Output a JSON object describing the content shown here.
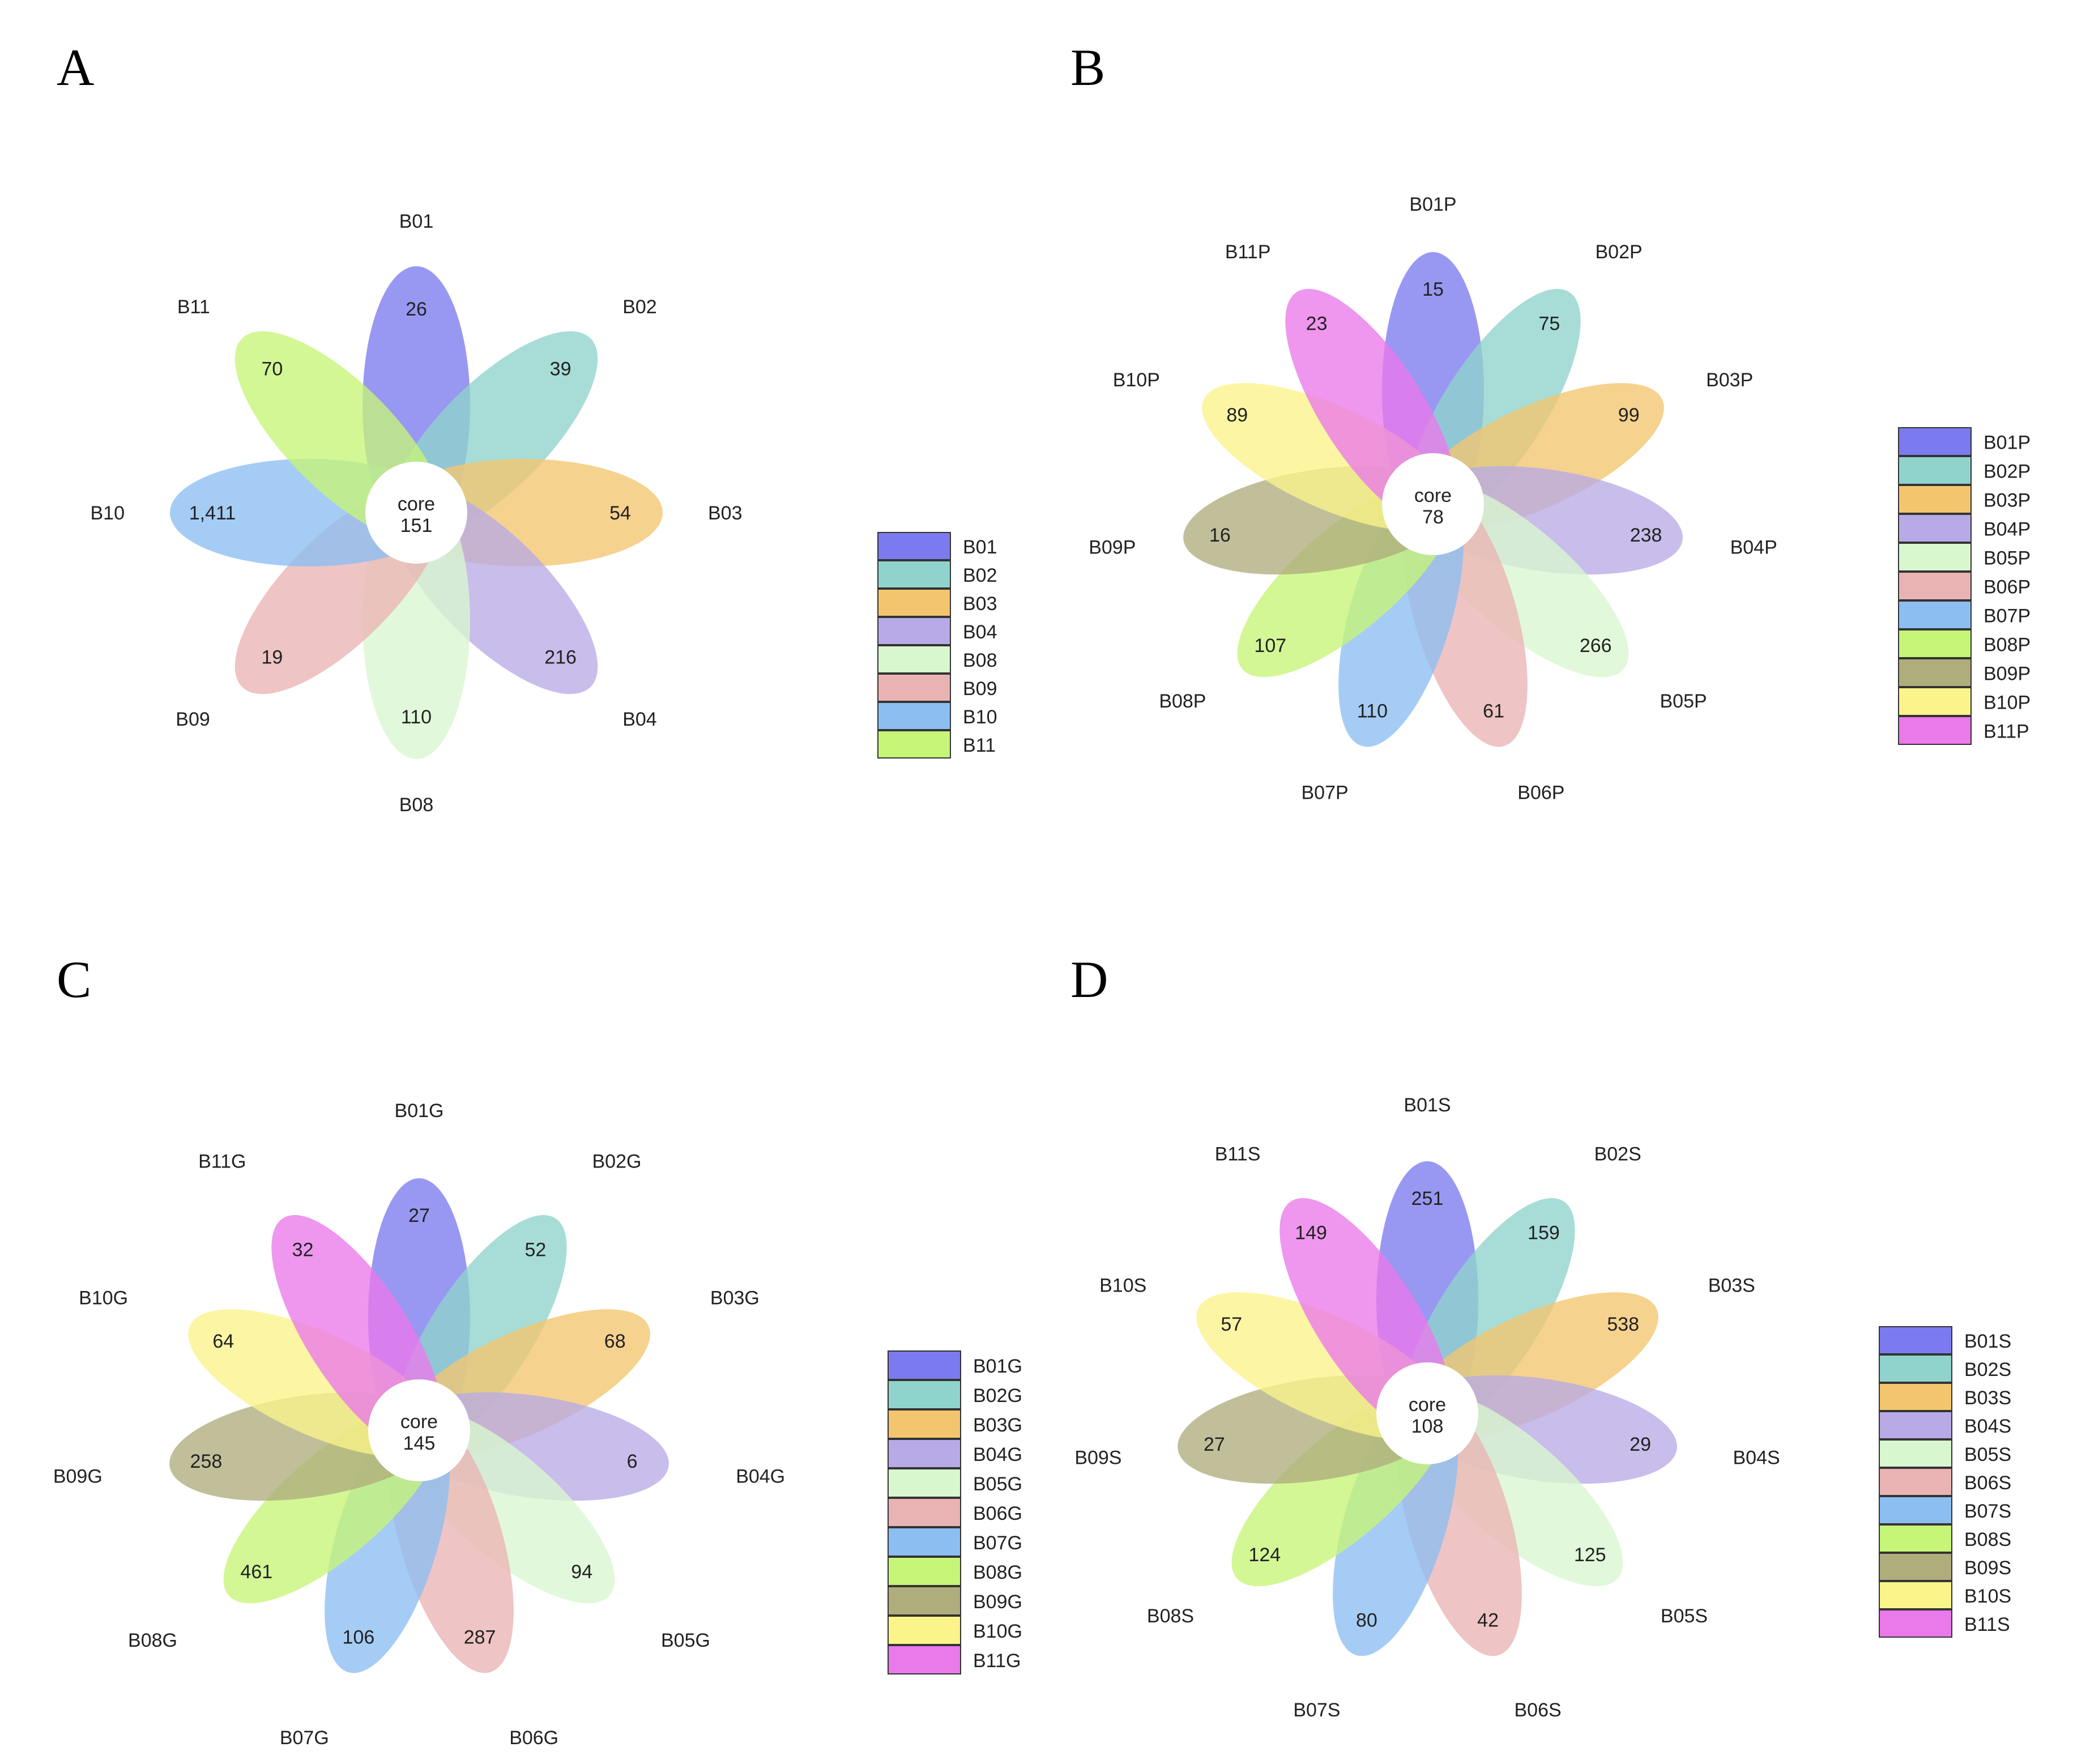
{
  "chart_data": [
    {
      "type": "flower",
      "panel": "A",
      "core_label": "core",
      "core_value": "151",
      "petals": [
        {
          "name": "B01",
          "value": "26",
          "color": "#7b7bef"
        },
        {
          "name": "B02",
          "value": "39",
          "color": "#8fd3cc"
        },
        {
          "name": "B03",
          "value": "54",
          "color": "#f4c56f"
        },
        {
          "name": "B04",
          "value": "216",
          "color": "#b8aae6"
        },
        {
          "name": "B08",
          "value": "110",
          "color": "#d8f7cf"
        },
        {
          "name": "B09",
          "value": "19",
          "color": "#eab3b3"
        },
        {
          "name": "B10",
          "value": "1,411",
          "color": "#8cbef2"
        },
        {
          "name": "B11",
          "value": "70",
          "color": "#c6f577"
        }
      ],
      "legend": [
        "B01",
        "B02",
        "B03",
        "B04",
        "B08",
        "B09",
        "B10",
        "B11"
      ]
    },
    {
      "type": "flower",
      "panel": "B",
      "core_label": "core",
      "core_value": "78",
      "petals": [
        {
          "name": "B01P",
          "value": "15",
          "color": "#7b7bef"
        },
        {
          "name": "B02P",
          "value": "75",
          "color": "#8fd3cc"
        },
        {
          "name": "B03P",
          "value": "99",
          "color": "#f4c56f"
        },
        {
          "name": "B04P",
          "value": "238",
          "color": "#b8aae6"
        },
        {
          "name": "B05P",
          "value": "266",
          "color": "#d8f7cf"
        },
        {
          "name": "B06P",
          "value": "61",
          "color": "#eab3b3"
        },
        {
          "name": "B07P",
          "value": "110",
          "color": "#8cbef2"
        },
        {
          "name": "B08P",
          "value": "107",
          "color": "#c6f577"
        },
        {
          "name": "B09P",
          "value": "16",
          "color": "#b0ad7c"
        },
        {
          "name": "B10P",
          "value": "89",
          "color": "#fbf48a"
        },
        {
          "name": "B11P",
          "value": "23",
          "color": "#ea79ea"
        }
      ],
      "legend": [
        "B01P",
        "B02P",
        "B03P",
        "B04P",
        "B05P",
        "B06P",
        "B07P",
        "B08P",
        "B09P",
        "B10P",
        "B11P"
      ]
    },
    {
      "type": "flower",
      "panel": "C",
      "core_label": "core",
      "core_value": "145",
      "petals": [
        {
          "name": "B01G",
          "value": "27",
          "color": "#7b7bef"
        },
        {
          "name": "B02G",
          "value": "52",
          "color": "#8fd3cc"
        },
        {
          "name": "B03G",
          "value": "68",
          "color": "#f4c56f"
        },
        {
          "name": "B04G",
          "value": "6",
          "color": "#b8aae6"
        },
        {
          "name": "B05G",
          "value": "94",
          "color": "#d8f7cf"
        },
        {
          "name": "B06G",
          "value": "287",
          "color": "#eab3b3"
        },
        {
          "name": "B07G",
          "value": "106",
          "color": "#8cbef2"
        },
        {
          "name": "B08G",
          "value": "461",
          "color": "#c6f577"
        },
        {
          "name": "B09G",
          "value": "258",
          "color": "#b0ad7c"
        },
        {
          "name": "B10G",
          "value": "64",
          "color": "#fbf48a"
        },
        {
          "name": "B11G",
          "value": "32",
          "color": "#ea79ea"
        }
      ],
      "legend": [
        "B01G",
        "B02G",
        "B03G",
        "B04G",
        "B05G",
        "B06G",
        "B07G",
        "B08G",
        "B09G",
        "B10G",
        "B11G"
      ]
    },
    {
      "type": "flower",
      "panel": "D",
      "core_label": "core",
      "core_value": "108",
      "petals": [
        {
          "name": "B01S",
          "value": "251",
          "color": "#7b7bef"
        },
        {
          "name": "B02S",
          "value": "159",
          "color": "#8fd3cc"
        },
        {
          "name": "B03S",
          "value": "538",
          "color": "#f4c56f"
        },
        {
          "name": "B04S",
          "value": "29",
          "color": "#b8aae6"
        },
        {
          "name": "B05S",
          "value": "125",
          "color": "#d8f7cf"
        },
        {
          "name": "B06S",
          "value": "42",
          "color": "#eab3b3"
        },
        {
          "name": "B07S",
          "value": "80",
          "color": "#8cbef2"
        },
        {
          "name": "B08S",
          "value": "124",
          "color": "#c6f577"
        },
        {
          "name": "B09S",
          "value": "27",
          "color": "#b0ad7c"
        },
        {
          "name": "B10S",
          "value": "57",
          "color": "#fbf48a"
        },
        {
          "name": "B11S",
          "value": "149",
          "color": "#ea79ea"
        }
      ],
      "legend": [
        "B01S",
        "B02S",
        "B03S",
        "B04S",
        "B05S",
        "B06S",
        "B07S",
        "B08S",
        "B09S",
        "B10S",
        "B11S"
      ]
    }
  ]
}
